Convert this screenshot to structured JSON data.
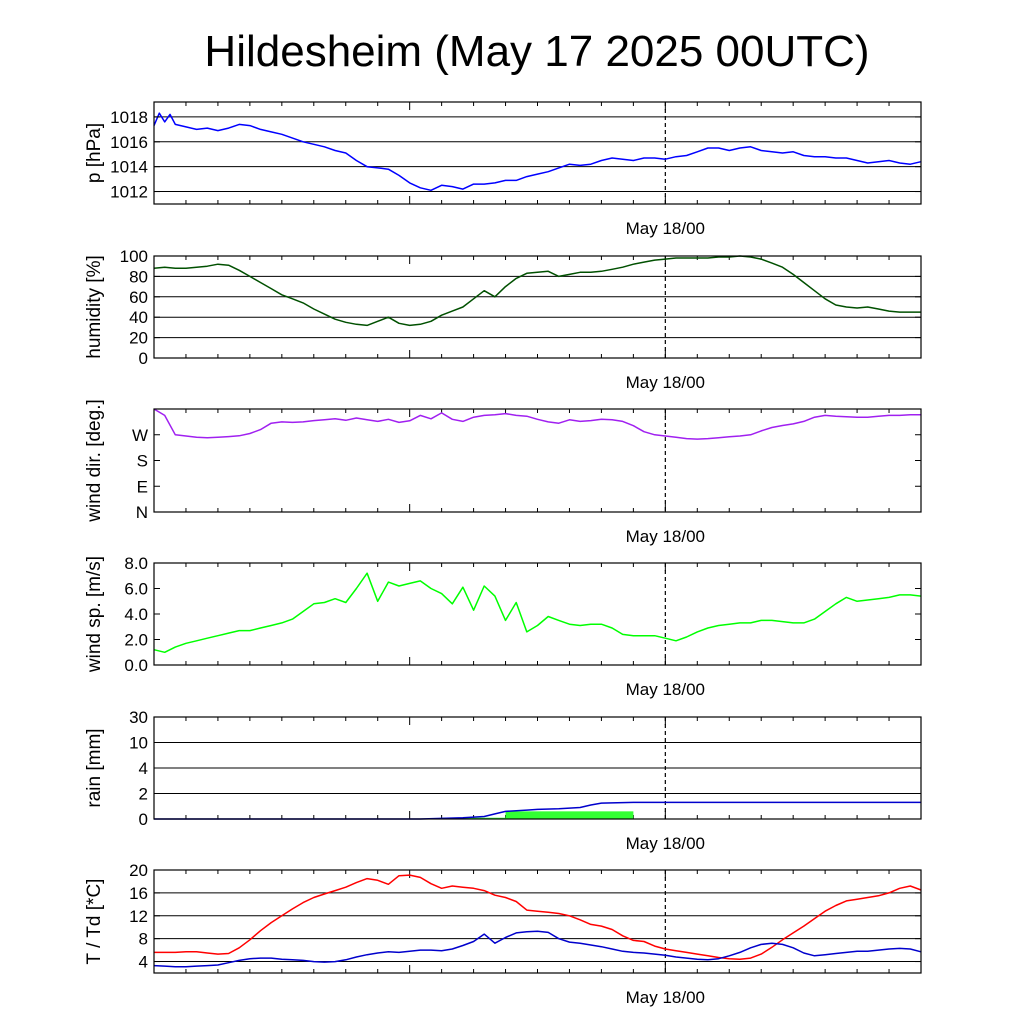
{
  "title": "Hildesheim (May 17 2025 00UTC)",
  "date_label": "May 18/00",
  "colors": {
    "pressure": "#0000ff",
    "humidity": "#005000",
    "wind_dir": "#a020f0",
    "wind_speed": "#00ff00",
    "rain_bar": "#33ff33",
    "rain_line": "#0000cc",
    "temperature": "#ff0000",
    "dewpoint": "#0000cc"
  },
  "chart_data": [
    {
      "type": "line",
      "ylabel": "p [hPa]",
      "ylim": [
        1011,
        1019.2
      ],
      "x_range": [
        0,
        72
      ],
      "yticks": [
        1012,
        1014,
        1016,
        1018
      ],
      "ytick_labels": [
        "1012",
        "1014",
        "1016",
        "1018"
      ],
      "grid": true,
      "series": [
        {
          "color_key": "pressure",
          "x": [
            0,
            0.5,
            1,
            1.5,
            2,
            3,
            4,
            5,
            6,
            7,
            8,
            9,
            10,
            11,
            12,
            13,
            14,
            15,
            16,
            17,
            18,
            19,
            20,
            21,
            22,
            23,
            24,
            25,
            26,
            27,
            28,
            29,
            30,
            31,
            32,
            33,
            34,
            35,
            36,
            37,
            38,
            39,
            40,
            41,
            42,
            43,
            44,
            45,
            46,
            47,
            48,
            49,
            50,
            51,
            52,
            53,
            54,
            55,
            56,
            57,
            58,
            59,
            60,
            61,
            62,
            63,
            64,
            65,
            66,
            67,
            68,
            69,
            70,
            71,
            72
          ],
          "y": [
            1017.3,
            1018.3,
            1017.6,
            1018.2,
            1017.4,
            1017.2,
            1017.0,
            1017.1,
            1016.9,
            1017.1,
            1017.4,
            1017.3,
            1017.0,
            1016.8,
            1016.6,
            1016.3,
            1016.0,
            1015.8,
            1015.6,
            1015.3,
            1015.1,
            1014.5,
            1014.0,
            1013.9,
            1013.8,
            1013.3,
            1012.7,
            1012.3,
            1012.1,
            1012.5,
            1012.4,
            1012.2,
            1012.6,
            1012.6,
            1012.7,
            1012.9,
            1012.9,
            1013.2,
            1013.4,
            1013.6,
            1013.9,
            1014.2,
            1014.1,
            1014.2,
            1014.5,
            1014.7,
            1014.6,
            1014.5,
            1014.7,
            1014.7,
            1014.6,
            1014.8,
            1014.9,
            1015.2,
            1015.5,
            1015.5,
            1015.3,
            1015.5,
            1015.6,
            1015.3,
            1015.2,
            1015.1,
            1015.2,
            1014.9,
            1014.8,
            1014.8,
            1014.7,
            1014.7,
            1014.5,
            1014.3,
            1014.4,
            1014.5,
            1014.3,
            1014.2,
            1014.4
          ]
        }
      ]
    },
    {
      "type": "line",
      "ylabel": "humidity [%]",
      "ylim": [
        0,
        100
      ],
      "x_range": [
        0,
        72
      ],
      "yticks": [
        0,
        20,
        40,
        60,
        80,
        100
      ],
      "ytick_labels": [
        "0",
        "20",
        "40",
        "60",
        "80",
        "100"
      ],
      "grid": true,
      "series": [
        {
          "color_key": "humidity",
          "x": [
            0,
            1,
            2,
            3,
            4,
            5,
            6,
            7,
            8,
            9,
            10,
            11,
            12,
            13,
            14,
            15,
            16,
            17,
            18,
            19,
            20,
            21,
            22,
            23,
            24,
            25,
            26,
            27,
            28,
            29,
            30,
            31,
            32,
            33,
            34,
            35,
            36,
            37,
            38,
            39,
            40,
            41,
            42,
            43,
            44,
            45,
            46,
            47,
            48,
            49,
            50,
            51,
            52,
            53,
            54,
            55,
            56,
            57,
            58,
            59,
            60,
            61,
            62,
            63,
            64,
            65,
            66,
            67,
            68,
            69,
            70,
            71,
            72
          ],
          "y": [
            88,
            89,
            88,
            88,
            89,
            90,
            92,
            91,
            86,
            80,
            74,
            68,
            62,
            58,
            54,
            48,
            43,
            38,
            35,
            33,
            32,
            36,
            40,
            34,
            32,
            33,
            36,
            42,
            46,
            50,
            58,
            66,
            60,
            70,
            78,
            83,
            84,
            85,
            80,
            82,
            84,
            84,
            85,
            87,
            89,
            92,
            94,
            96,
            97,
            98,
            98,
            98,
            98,
            99,
            99,
            100,
            99,
            97,
            93,
            89,
            82,
            74,
            66,
            58,
            52,
            50,
            49,
            50,
            48,
            46,
            45,
            45,
            45
          ]
        }
      ]
    },
    {
      "type": "line",
      "ylabel": "wind dir. [deg.]",
      "ylim": [
        0,
        400
      ],
      "x_range": [
        0,
        72
      ],
      "yticks": [
        0,
        100,
        200,
        300
      ],
      "ytick_labels": [
        "N",
        "E",
        "S",
        "W"
      ],
      "grid": false,
      "series": [
        {
          "color_key": "wind_dir",
          "x": [
            0,
            1,
            2,
            3,
            4,
            5,
            6,
            7,
            8,
            9,
            10,
            11,
            12,
            13,
            14,
            15,
            16,
            17,
            18,
            19,
            20,
            21,
            22,
            23,
            24,
            25,
            26,
            27,
            28,
            29,
            30,
            31,
            32,
            33,
            34,
            35,
            36,
            37,
            38,
            39,
            40,
            41,
            42,
            43,
            44,
            45,
            46,
            47,
            48,
            49,
            50,
            51,
            52,
            53,
            54,
            55,
            56,
            57,
            58,
            59,
            60,
            61,
            62,
            63,
            64,
            65,
            66,
            67,
            68,
            69,
            70,
            71,
            72
          ],
          "y": [
            400,
            375,
            300,
            295,
            290,
            288,
            290,
            293,
            296,
            305,
            320,
            345,
            350,
            348,
            350,
            355,
            358,
            362,
            356,
            365,
            358,
            352,
            360,
            348,
            354,
            375,
            362,
            385,
            360,
            352,
            368,
            375,
            378,
            382,
            375,
            372,
            360,
            350,
            345,
            358,
            352,
            355,
            360,
            358,
            352,
            335,
            312,
            300,
            295,
            290,
            285,
            283,
            285,
            288,
            292,
            295,
            300,
            315,
            328,
            336,
            342,
            352,
            368,
            375,
            372,
            370,
            368,
            368,
            372,
            375,
            375,
            378,
            378
          ]
        }
      ]
    },
    {
      "type": "line",
      "ylabel": "wind sp. [m/s]",
      "ylim": [
        0,
        8
      ],
      "x_range": [
        0,
        72
      ],
      "yticks": [
        0,
        2,
        4,
        6,
        8
      ],
      "ytick_labels": [
        "0.0",
        "2.0",
        "4.0",
        "6.0",
        "8.0"
      ],
      "grid": false,
      "series": [
        {
          "color_key": "wind_speed",
          "x": [
            0,
            1,
            2,
            3,
            4,
            5,
            6,
            7,
            8,
            9,
            10,
            11,
            12,
            13,
            14,
            15,
            16,
            17,
            18,
            19,
            20,
            21,
            22,
            23,
            24,
            25,
            26,
            27,
            28,
            29,
            30,
            31,
            32,
            33,
            34,
            35,
            36,
            37,
            38,
            39,
            40,
            41,
            42,
            43,
            44,
            45,
            46,
            47,
            48,
            49,
            50,
            51,
            52,
            53,
            54,
            55,
            56,
            57,
            58,
            59,
            60,
            61,
            62,
            63,
            64,
            65,
            66,
            67,
            68,
            69,
            70,
            71,
            72
          ],
          "y": [
            1.2,
            1.0,
            1.4,
            1.7,
            1.9,
            2.1,
            2.3,
            2.5,
            2.7,
            2.7,
            2.9,
            3.1,
            3.3,
            3.6,
            4.2,
            4.8,
            4.9,
            5.2,
            4.9,
            6.0,
            7.2,
            5.0,
            6.5,
            6.2,
            6.4,
            6.6,
            6.0,
            5.6,
            4.8,
            6.1,
            4.3,
            6.2,
            5.4,
            3.5,
            4.9,
            2.6,
            3.1,
            3.8,
            3.5,
            3.2,
            3.1,
            3.2,
            3.2,
            2.9,
            2.4,
            2.3,
            2.3,
            2.3,
            2.1,
            1.9,
            2.2,
            2.6,
            2.9,
            3.1,
            3.2,
            3.3,
            3.3,
            3.5,
            3.5,
            3.4,
            3.3,
            3.3,
            3.6,
            4.2,
            4.8,
            5.3,
            5.0,
            5.1,
            5.2,
            5.3,
            5.5,
            5.5,
            5.4
          ]
        }
      ]
    },
    {
      "type": "bar",
      "ylabel": "rain [mm]",
      "ylim": [
        0,
        30
      ],
      "x_range": [
        0,
        72
      ],
      "yticks": [
        0,
        2,
        4,
        10,
        30
      ],
      "ytick_labels": [
        "0",
        "2",
        "4",
        "10",
        "30"
      ],
      "scale": "piecewise",
      "grid": true,
      "bars": [
        {
          "x0": 27,
          "x1": 33,
          "value": 0.1
        },
        {
          "x0": 33,
          "x1": 45,
          "value": 0.6
        }
      ],
      "series": [
        {
          "color_key": "rain_line",
          "x": [
            0,
            25,
            27,
            29,
            31,
            32,
            33,
            35,
            36,
            38,
            40,
            41,
            42,
            45,
            72
          ],
          "y": [
            0,
            0,
            0.05,
            0.1,
            0.2,
            0.4,
            0.6,
            0.7,
            0.75,
            0.8,
            0.9,
            1.1,
            1.25,
            1.3,
            1.3
          ]
        }
      ]
    },
    {
      "type": "line",
      "ylabel": "T / Td [*C]",
      "ylim": [
        2,
        20
      ],
      "x_range": [
        0,
        72
      ],
      "yticks": [
        4,
        8,
        12,
        16,
        20
      ],
      "ytick_labels": [
        "4",
        "8",
        "12",
        "16",
        "20"
      ],
      "grid": true,
      "series": [
        {
          "color_key": "temperature",
          "x": [
            0,
            1,
            2,
            3,
            4,
            5,
            6,
            7,
            8,
            9,
            10,
            11,
            12,
            13,
            14,
            15,
            16,
            17,
            18,
            19,
            20,
            21,
            22,
            23,
            24,
            25,
            26,
            27,
            28,
            29,
            30,
            31,
            32,
            33,
            34,
            35,
            36,
            37,
            38,
            39,
            40,
            41,
            42,
            43,
            44,
            45,
            46,
            47,
            48,
            49,
            50,
            51,
            52,
            53,
            54,
            55,
            56,
            57,
            58,
            59,
            60,
            61,
            62,
            63,
            64,
            65,
            66,
            67,
            68,
            69,
            70,
            71,
            72
          ],
          "y": [
            5.6,
            5.6,
            5.6,
            5.7,
            5.7,
            5.5,
            5.3,
            5.4,
            6.4,
            7.8,
            9.4,
            10.8,
            12.0,
            13.2,
            14.3,
            15.2,
            15.8,
            16.4,
            17.0,
            17.8,
            18.5,
            18.2,
            17.5,
            19.0,
            19.1,
            18.7,
            17.6,
            16.8,
            17.2,
            17.0,
            16.8,
            16.4,
            15.6,
            15.2,
            14.5,
            13.0,
            12.8,
            12.6,
            12.4,
            12.0,
            11.3,
            10.5,
            10.2,
            9.6,
            8.5,
            7.7,
            7.5,
            6.7,
            6.2,
            5.9,
            5.6,
            5.3,
            5.0,
            4.7,
            4.5,
            4.4,
            4.6,
            5.3,
            6.5,
            7.8,
            9.0,
            10.2,
            11.5,
            12.8,
            13.8,
            14.6,
            14.9,
            15.2,
            15.5,
            16.0,
            16.8,
            17.2,
            16.5
          ]
        },
        {
          "color_key": "dewpoint",
          "x": [
            0,
            1,
            2,
            3,
            4,
            5,
            6,
            7,
            8,
            9,
            10,
            11,
            12,
            13,
            14,
            15,
            16,
            17,
            18,
            19,
            20,
            21,
            22,
            23,
            24,
            25,
            26,
            27,
            28,
            29,
            30,
            31,
            32,
            33,
            34,
            35,
            36,
            37,
            38,
            39,
            40,
            41,
            42,
            43,
            44,
            45,
            46,
            47,
            48,
            49,
            50,
            51,
            52,
            53,
            54,
            55,
            56,
            57,
            58,
            59,
            60,
            61,
            62,
            63,
            64,
            65,
            66,
            67,
            68,
            69,
            70,
            71,
            72
          ],
          "y": [
            3.3,
            3.2,
            3.1,
            3.1,
            3.2,
            3.3,
            3.4,
            3.8,
            4.2,
            4.5,
            4.6,
            4.6,
            4.4,
            4.3,
            4.2,
            4.0,
            3.9,
            4.0,
            4.3,
            4.8,
            5.2,
            5.5,
            5.7,
            5.6,
            5.8,
            6.0,
            6.0,
            5.9,
            6.2,
            6.8,
            7.5,
            8.8,
            7.2,
            8.2,
            9.0,
            9.2,
            9.3,
            9.1,
            8.0,
            7.4,
            7.2,
            6.9,
            6.6,
            6.2,
            5.8,
            5.6,
            5.5,
            5.3,
            5.1,
            4.8,
            4.6,
            4.4,
            4.3,
            4.5,
            5.0,
            5.6,
            6.4,
            7.0,
            7.2,
            7.0,
            6.4,
            5.5,
            5.0,
            5.2,
            5.4,
            5.6,
            5.8,
            5.8,
            6.0,
            6.2,
            6.3,
            6.2,
            5.7
          ]
        }
      ]
    }
  ]
}
